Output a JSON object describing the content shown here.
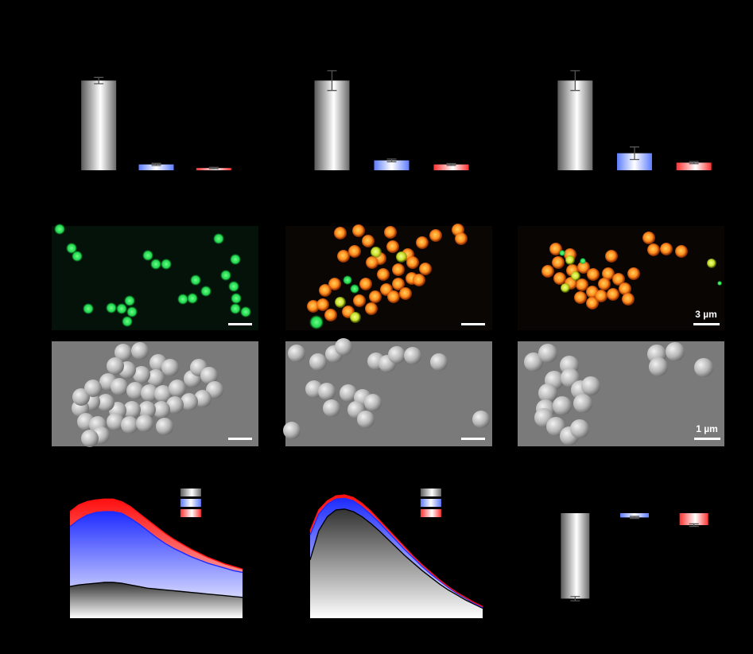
{
  "colors": {
    "background": "#000000",
    "control": "#7f7f7f",
    "treatment_blue": "#2a3bff",
    "treatment_red": "#ff1a1a",
    "fluorescence_green": "#1dd34a",
    "fluorescence_orange": "#ff7a1a"
  },
  "scale_bars": {
    "fluorescence": "3 µm",
    "sem": "1 µm"
  },
  "chart_data": [
    {
      "type": "bar",
      "panel": "top-left",
      "categories": [
        "control",
        "blue",
        "red"
      ],
      "values": [
        100,
        6.5,
        2.5
      ],
      "errors": [
        3.5,
        1.2,
        0.8
      ],
      "ylim": [
        0,
        110
      ]
    },
    {
      "type": "bar",
      "panel": "top-middle",
      "categories": [
        "control",
        "blue",
        "red"
      ],
      "values": [
        100,
        11,
        6.5
      ],
      "errors": [
        11,
        1.5,
        1.0
      ],
      "ylim": [
        0,
        110
      ]
    },
    {
      "type": "bar",
      "panel": "top-right",
      "categories": [
        "control",
        "blue",
        "red"
      ],
      "values": [
        100,
        19,
        8.5
      ],
      "errors": [
        11,
        7,
        1.2
      ],
      "ylim": [
        0,
        110
      ]
    },
    {
      "type": "area",
      "panel": "bottom-left",
      "x": [
        0,
        5,
        10,
        15,
        20,
        25,
        30,
        35,
        40,
        45,
        50,
        55,
        60,
        65,
        70,
        75,
        80,
        85,
        90,
        95,
        100
      ],
      "series": [
        {
          "values": [
            38,
            40,
            41,
            42,
            43,
            43,
            42,
            40,
            38,
            36,
            35,
            34,
            33,
            32,
            31,
            30,
            29,
            28,
            27,
            26,
            25
          ]
        },
        {
          "values": [
            110,
            118,
            124,
            127,
            128,
            128,
            126,
            120,
            113,
            105,
            97,
            90,
            84,
            79,
            74,
            70,
            66,
            63,
            60,
            57,
            55
          ]
        },
        {
          "values": [
            128,
            136,
            140,
            142,
            143,
            143,
            140,
            134,
            126,
            118,
            110,
            102,
            95,
            89,
            83,
            78,
            73,
            69,
            65,
            62,
            59
          ]
        }
      ],
      "legend_position": "top-right",
      "ylim": [
        0,
        150
      ]
    },
    {
      "type": "area",
      "panel": "bottom-middle",
      "x": [
        0,
        5,
        10,
        15,
        20,
        25,
        30,
        35,
        40,
        45,
        50,
        55,
        60,
        65,
        70,
        75,
        80,
        85,
        90,
        95,
        100
      ],
      "series": [
        {
          "values": [
            70,
            105,
            122,
            130,
            131,
            128,
            122,
            114,
            105,
            95,
            85,
            75,
            66,
            57,
            49,
            41,
            34,
            28,
            22,
            17,
            12
          ]
        },
        {
          "values": [
            100,
            125,
            137,
            143,
            144,
            141,
            134,
            125,
            115,
            104,
            93,
            82,
            72,
            62,
            53,
            45,
            37,
            30,
            24,
            18,
            13
          ]
        },
        {
          "values": [
            105,
            130,
            141,
            147,
            148,
            145,
            138,
            129,
            118,
            107,
            96,
            85,
            74,
            64,
            55,
            46,
            38,
            31,
            25,
            19,
            14
          ]
        }
      ],
      "legend_position": "top-right",
      "ylim": [
        0,
        150
      ]
    },
    {
      "type": "bar",
      "panel": "bottom-right",
      "categories": [
        "control",
        "blue",
        "red"
      ],
      "values": [
        -100,
        -5,
        -14
      ],
      "errors": [
        2.5,
        1.2,
        1.5
      ],
      "ylim": [
        -108,
        0
      ]
    }
  ]
}
